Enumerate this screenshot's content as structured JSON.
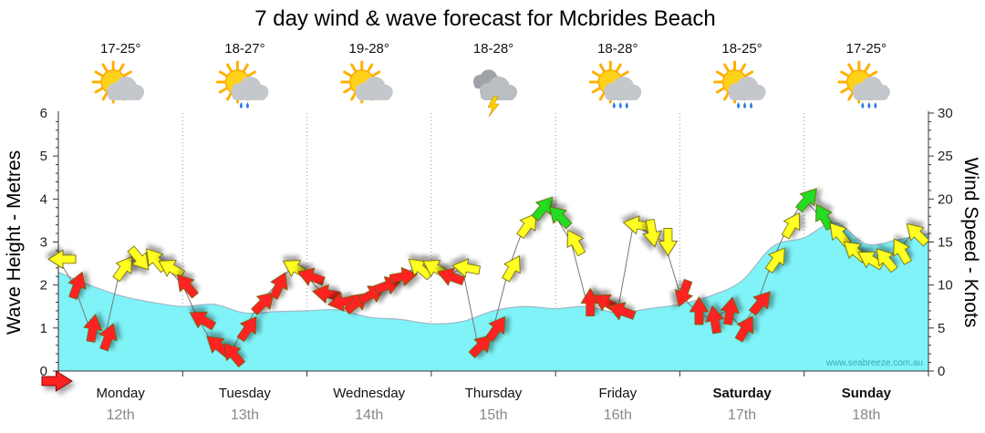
{
  "chart_data": {
    "type": "area",
    "title": "7 day wind & wave forecast for Mcbrides Beach",
    "left_axis": {
      "label": "Wave Height - Metres",
      "ticks": [
        "0",
        "1",
        "2",
        "3",
        "4",
        "5",
        "6"
      ],
      "range": [
        0,
        6
      ]
    },
    "right_axis": {
      "label": "Wind Speed - Knots",
      "ticks": [
        "0",
        "5",
        "10",
        "15",
        "20",
        "25",
        "30"
      ],
      "range": [
        0,
        30
      ]
    },
    "days": [
      {
        "name": "Monday",
        "date": "12th",
        "bold": false,
        "temp": "17-25°",
        "icon": "partly-cloudy-icon"
      },
      {
        "name": "Tuesday",
        "date": "13th",
        "bold": false,
        "temp": "18-27°",
        "icon": "showers-icon"
      },
      {
        "name": "Wednesday",
        "date": "14th",
        "bold": false,
        "temp": "19-28°",
        "icon": "partly-cloudy-icon"
      },
      {
        "name": "Thursday",
        "date": "15th",
        "bold": false,
        "temp": "18-28°",
        "icon": "storm-icon"
      },
      {
        "name": "Friday",
        "date": "16th",
        "bold": false,
        "temp": "18-28°",
        "icon": "rain-icon"
      },
      {
        "name": "Saturday",
        "date": "17th",
        "bold": true,
        "temp": "18-25°",
        "icon": "rain-icon"
      },
      {
        "name": "Sunday",
        "date": "18th",
        "bold": true,
        "temp": "17-25°",
        "icon": "rain-icon"
      }
    ],
    "wave_height": {
      "unit": "m",
      "x_hours": [
        0,
        6,
        12,
        18,
        24,
        30,
        36,
        42,
        48,
        54,
        60,
        66,
        72,
        78,
        84,
        90,
        96,
        102,
        108,
        114,
        120,
        126,
        132,
        138,
        144,
        150,
        156,
        162,
        168
      ],
      "values": [
        2.3,
        2.0,
        1.75,
        1.6,
        1.5,
        1.55,
        1.35,
        1.38,
        1.4,
        1.42,
        1.25,
        1.2,
        1.1,
        1.15,
        1.4,
        1.5,
        1.45,
        1.5,
        1.35,
        1.45,
        1.55,
        1.75,
        2.1,
        2.9,
        3.1,
        3.45,
        2.95,
        3.05,
        3.2
      ]
    },
    "wind": {
      "unit": "knots",
      "x_hours": [
        0,
        3,
        6,
        9,
        12,
        15,
        18,
        21,
        24,
        27,
        30,
        33,
        36,
        39,
        42,
        45,
        48,
        51,
        54,
        57,
        60,
        63,
        66,
        69,
        72,
        75,
        78,
        81,
        84,
        87,
        90,
        93,
        96,
        99,
        102,
        105,
        108,
        111,
        114,
        117,
        120,
        123,
        126,
        129,
        132,
        135,
        138,
        141,
        144,
        147,
        150,
        153,
        156,
        159,
        162,
        165
      ],
      "speed": [
        13,
        10,
        5,
        4,
        12,
        13,
        13,
        12,
        10,
        6,
        3,
        2,
        5,
        8,
        10,
        12,
        11,
        9,
        8,
        8,
        9,
        10,
        11,
        12,
        12,
        11,
        12,
        3,
        5,
        12,
        17,
        19,
        18,
        15,
        8,
        8,
        7,
        17,
        16,
        15,
        9,
        7,
        6,
        7,
        5,
        8,
        13,
        17,
        20,
        18,
        16,
        14,
        13,
        13,
        14,
        16
      ],
      "direction_deg": [
        270,
        20,
        10,
        20,
        35,
        140,
        320,
        300,
        320,
        300,
        310,
        320,
        35,
        45,
        25,
        300,
        290,
        280,
        260,
        50,
        60,
        70,
        80,
        310,
        300,
        290,
        280,
        45,
        35,
        30,
        35,
        40,
        315,
        330,
        0,
        300,
        290,
        280,
        170,
        180,
        200,
        0,
        350,
        10,
        30,
        40,
        35,
        30,
        40,
        330,
        320,
        310,
        300,
        320,
        330,
        315
      ],
      "colors": {
        "light": "#ff2020",
        "moderate": "#ffff20",
        "strong": "#22dd22"
      }
    },
    "watermark": "www.seabreeze.com.au"
  }
}
